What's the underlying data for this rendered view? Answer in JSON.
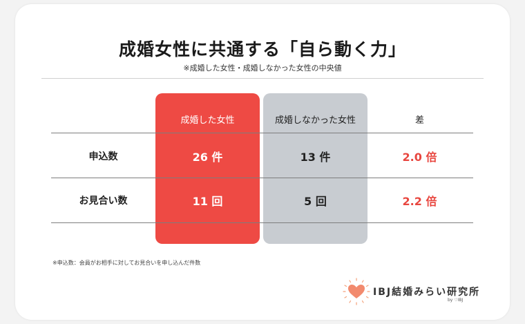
{
  "title": "成婚女性に共通する「自ら動く力」",
  "subtitle": "※成婚した女性・成婚しなかった女性の中央値",
  "table": {
    "headers": {
      "married": "成婚した女性",
      "not_married": "成婚しなかった女性",
      "diff": "差"
    },
    "rows": [
      {
        "label": "申込数",
        "married": "26 件",
        "not_married": "13 件",
        "diff": "2.0 倍"
      },
      {
        "label": "お見合い数",
        "married": "11 回",
        "not_married": "5 回",
        "diff": "2.2 倍"
      }
    ]
  },
  "footnote": "※申込数：会員がお相手に対してお見合いを申し込んだ件数",
  "logo": {
    "text": "IBJ結婚みらい研究所",
    "by": "by ♡IBJ"
  },
  "colors": {
    "accent_red": "#ee4a44",
    "grey_column": "#c8ccd1",
    "diff_text": "#e8463f"
  }
}
